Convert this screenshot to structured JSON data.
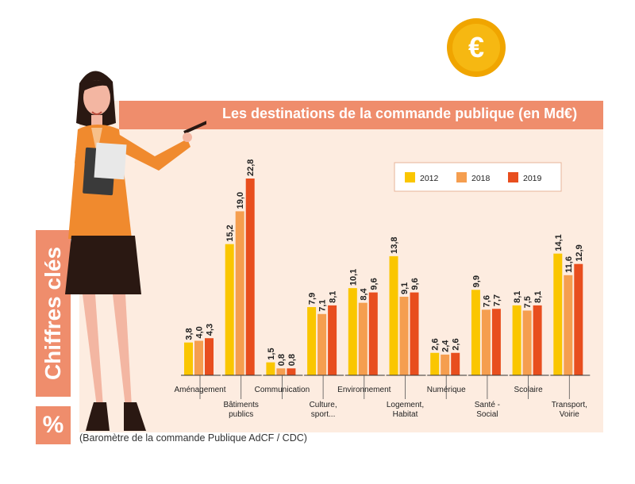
{
  "header": {
    "title": "Les destinations de la commande publique (en Md€)"
  },
  "sidebar": {
    "label": "Chiffres clés",
    "symbol": "%"
  },
  "coin": {
    "symbol": "€"
  },
  "footer": {
    "source": "(Baromètre de la commande Publique AdCF / CDC)"
  },
  "colors": {
    "accent": "#ef8d6c",
    "panel": "#fdece0",
    "s2012": "#fac600",
    "s2018": "#f59e4f",
    "s2019": "#e84e1e"
  },
  "chart_data": {
    "type": "bar",
    "title": "Les destinations de la commande publique (en Md€)",
    "xlabel": "",
    "ylabel": "Md€",
    "ylim": [
      0,
      22.8
    ],
    "categories": [
      [
        "Aménagement"
      ],
      [
        "Bâtiments",
        "publics"
      ],
      [
        "Communication"
      ],
      [
        "Culture,",
        "sport..."
      ],
      [
        "Environnement"
      ],
      [
        "Logement,",
        "Habitat"
      ],
      [
        "Numérique"
      ],
      [
        "Santé -",
        "Social"
      ],
      [
        "Scolaire"
      ],
      [
        "Transport,",
        "Voirie"
      ]
    ],
    "series": [
      {
        "name": "2012",
        "color": "#fac600",
        "values": [
          3.8,
          15.2,
          1.5,
          7.9,
          10.1,
          13.8,
          2.6,
          9.9,
          8.1,
          14.1
        ],
        "labels": [
          "3,8",
          "15,2",
          "1,5",
          "7,9",
          "10,1",
          "13,8",
          "2,6",
          "9,9",
          "8,1",
          "14,1"
        ]
      },
      {
        "name": "2018",
        "color": "#f59e4f",
        "values": [
          4.0,
          19.0,
          0.8,
          7.1,
          8.4,
          9.1,
          2.4,
          7.6,
          7.5,
          11.6
        ],
        "labels": [
          "4,0",
          "19,0",
          "0,8",
          "7,1",
          "8,4",
          "9,1",
          "2,4",
          "7,6",
          "7,5",
          "11,6"
        ]
      },
      {
        "name": "2019",
        "color": "#e84e1e",
        "values": [
          4.3,
          22.8,
          0.8,
          8.1,
          9.6,
          9.6,
          2.6,
          7.7,
          8.1,
          12.9
        ],
        "labels": [
          "4,3",
          "22,8",
          "0,8",
          "8,1",
          "9,6",
          "9,6",
          "2,6",
          "7,7",
          "8,1",
          "12,9"
        ]
      }
    ],
    "legend": {
      "position": "top-right"
    }
  }
}
